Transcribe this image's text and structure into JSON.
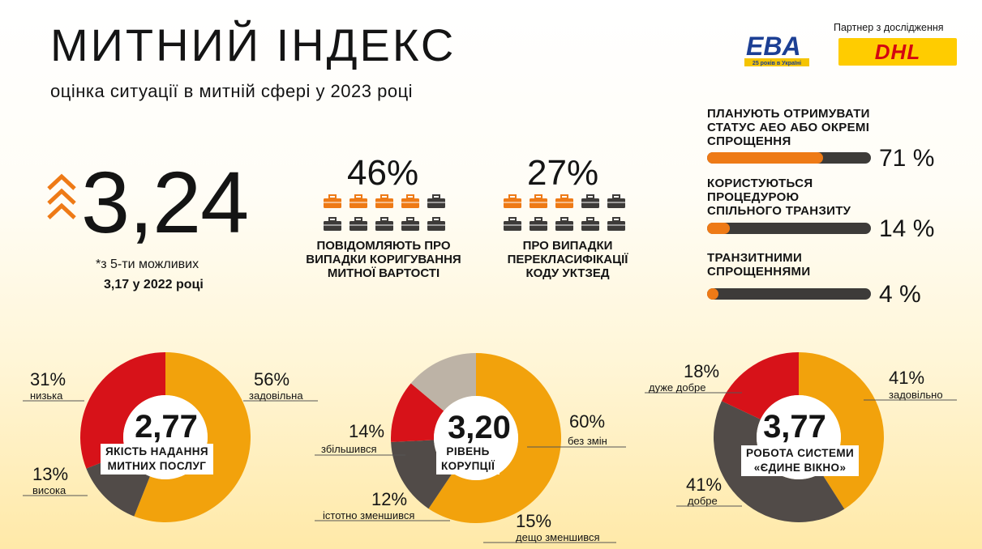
{
  "header": {
    "title": "МИТНИЙ ІНДЕКС",
    "subtitle": "оцінка ситуації в митній сфері у 2023 році",
    "partner": "Партнер з дослідження",
    "eva_logo": "EBA",
    "eva_tagline": "25 років в Україні",
    "dhl_logo": "DHL"
  },
  "index": {
    "value": "3,24",
    "note": "*з 5-ти можливих",
    "previous": "3,17 у 2022 році"
  },
  "brief_stats": [
    {
      "percent": "46%",
      "caption": [
        "ПОВІДОМЛЯЮТЬ ПРО",
        "ВИПАДКИ КОРИГУВАННЯ",
        "МИТНОЇ ВАРТОСТІ"
      ],
      "highlighted": 4,
      "total": 10
    },
    {
      "percent": "27%",
      "caption": [
        "ПРО ВИПАДКИ",
        "ПЕРЕКЛАСИФІКАЦІЇ",
        "КОДУ УКТЗЕД"
      ],
      "highlighted": 3,
      "total": 10
    }
  ],
  "bars": [
    {
      "label": [
        "ПЛАНУЮТЬ ОТРИМУВАТИ",
        "СТАТУС АЕО АБО ОКРЕМІ",
        "СПРОЩЕННЯ"
      ],
      "value": 71,
      "text": "71 %"
    },
    {
      "label": [
        "КОРИСТУЮТЬСЯ",
        "ПРОЦЕДУРОЮ",
        "СПІЛЬНОГО ТРАНЗИТУ"
      ],
      "value": 14,
      "text": "14 %"
    },
    {
      "label": [
        "ТРАНЗИТНИМИ",
        "СПРОЩЕННЯМИ"
      ],
      "value": 4,
      "text": "4 %"
    }
  ],
  "chart_data": [
    {
      "type": "pie",
      "center_value": "2,77",
      "label": [
        "ЯКІСТЬ НАДАННЯ",
        "МИТНИХ ПОСЛУГ"
      ],
      "slices": [
        {
          "name": "задовільна",
          "value": 56,
          "text": "56%",
          "color": "#f2a20c"
        },
        {
          "name": "висока",
          "value": 13,
          "text": "13%",
          "color": "#514b48"
        },
        {
          "name": "низька",
          "value": 31,
          "text": "31%",
          "color": "#d71219"
        }
      ]
    },
    {
      "type": "pie",
      "center_value": "3,20",
      "label": [
        "РІВЕНЬ",
        "КОРУПЦІЇ"
      ],
      "slices": [
        {
          "name": "без змін",
          "value": 60,
          "text": "60%",
          "color": "#f2a20c"
        },
        {
          "name": "дещо зменшився",
          "value": 15,
          "text": "15%",
          "color": "#514b48"
        },
        {
          "name": "істотно зменшився",
          "value": 12,
          "text": "12%",
          "color": "#d71219"
        },
        {
          "name": "збільшився",
          "value": 14,
          "text": "14%",
          "color": "#bdb3a6"
        }
      ]
    },
    {
      "type": "pie",
      "center_value": "3,77",
      "label": [
        "РОБОТА СИСТЕМИ",
        "«ЄДИНЕ ВІКНО»"
      ],
      "slices": [
        {
          "name": "задовільно",
          "value": 41,
          "text": "41%",
          "color": "#f2a20c"
        },
        {
          "name": "добре",
          "value": 41,
          "text": "41%",
          "color": "#514b48"
        },
        {
          "name": "дуже добре",
          "value": 18,
          "text": "18%",
          "color": "#d71219"
        }
      ]
    }
  ],
  "colors": {
    "accent": "#ee7a16",
    "dark": "#3d3b39",
    "red": "#d71219",
    "yellow": "#f2a20c"
  }
}
